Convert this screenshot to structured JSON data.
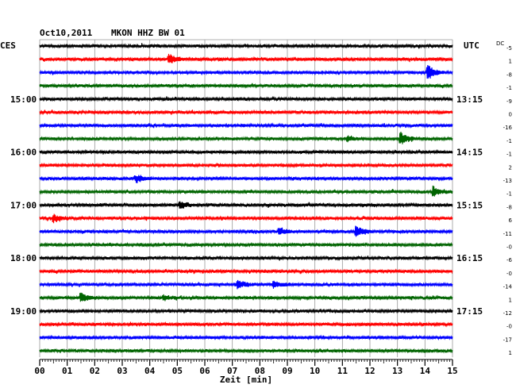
{
  "header": {
    "date": "Oct10,2011",
    "station": "MKON HHZ BW 01",
    "left_tz": "CES",
    "right_tz": "UTC",
    "dc_label": "DC"
  },
  "chart_data": {
    "type": "line",
    "title": "Oct10,2011   MKON HHZ BW 01",
    "xlabel": "Zeit [min]",
    "xlim": [
      0,
      15
    ],
    "x_ticks": [
      "00",
      "01",
      "02",
      "03",
      "04",
      "05",
      "06",
      "07",
      "08",
      "09",
      "10",
      "11",
      "12",
      "13",
      "14",
      "15"
    ],
    "trace_colors": [
      "#000000",
      "#ff0000",
      "#0000ff",
      "#006400"
    ],
    "left_time_labels": [
      {
        "trace": 4,
        "label": "15:00"
      },
      {
        "trace": 8,
        "label": "16:00"
      },
      {
        "trace": 12,
        "label": "17:00"
      },
      {
        "trace": 16,
        "label": "18:00"
      },
      {
        "trace": 20,
        "label": "19:00"
      }
    ],
    "right_time_labels": [
      {
        "trace": 4,
        "label": "13:15"
      },
      {
        "trace": 8,
        "label": "14:15"
      },
      {
        "trace": 12,
        "label": "15:15"
      },
      {
        "trace": 16,
        "label": "16:15"
      },
      {
        "trace": 20,
        "label": "17:15"
      }
    ],
    "dc_offsets": [
      "-5",
      "1",
      "-8",
      "-1",
      "-9",
      "0",
      "-16",
      "-1",
      "-1",
      "2",
      "-13",
      "-1",
      "-8",
      "6",
      "-11",
      "-0",
      "-6",
      "-0",
      "-14",
      "1",
      "-12",
      "-0",
      "-17",
      "1"
    ],
    "traces": 24,
    "events": [
      {
        "trace": 1,
        "minute": 4.7,
        "amplitude": 6
      },
      {
        "trace": 2,
        "minute": 14.1,
        "amplitude": 9
      },
      {
        "trace": 7,
        "minute": 11.2,
        "amplitude": 3
      },
      {
        "trace": 7,
        "minute": 13.1,
        "amplitude": 8
      },
      {
        "trace": 10,
        "minute": 3.5,
        "amplitude": 5
      },
      {
        "trace": 11,
        "minute": 14.3,
        "amplitude": 6
      },
      {
        "trace": 12,
        "minute": 5.1,
        "amplitude": 4
      },
      {
        "trace": 13,
        "minute": 0.5,
        "amplitude": 5
      },
      {
        "trace": 14,
        "minute": 11.5,
        "amplitude": 7
      },
      {
        "trace": 14,
        "minute": 8.7,
        "amplitude": 4
      },
      {
        "trace": 18,
        "minute": 7.2,
        "amplitude": 5
      },
      {
        "trace": 18,
        "minute": 8.5,
        "amplitude": 4
      },
      {
        "trace": 19,
        "minute": 1.5,
        "amplitude": 6
      },
      {
        "trace": 19,
        "minute": 4.5,
        "amplitude": 3
      }
    ]
  }
}
